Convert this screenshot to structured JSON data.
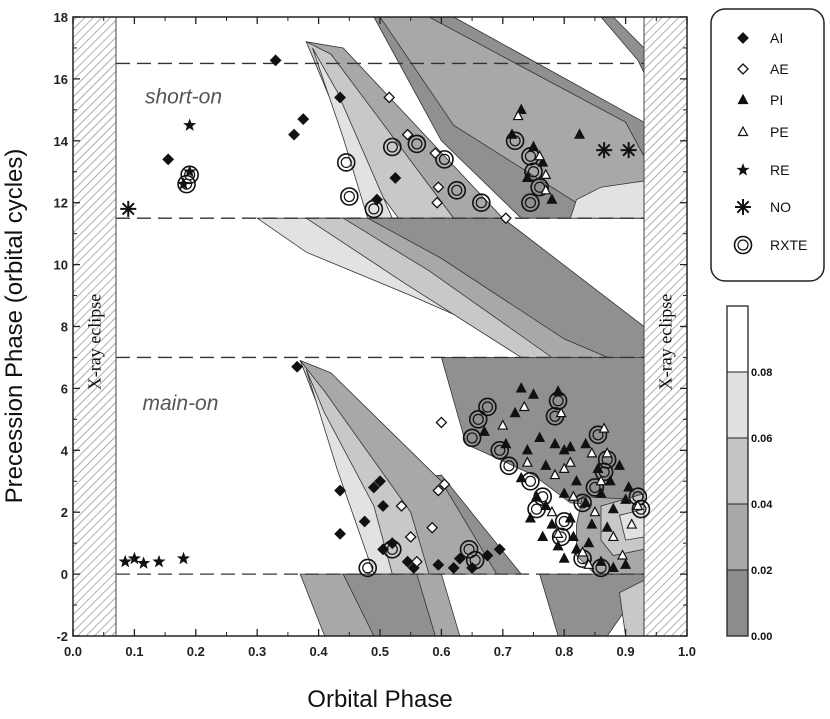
{
  "chart_data": {
    "type": "scatter",
    "xlabel": "Orbital Phase",
    "ylabel": "Precession Phase (orbital cycles)",
    "xlim": [
      0.0,
      1.0
    ],
    "ylim": [
      -2,
      18
    ],
    "xticks": [
      "0.0",
      "0.1",
      "0.2",
      "0.3",
      "0.4",
      "0.5",
      "0.6",
      "0.7",
      "0.8",
      "0.9",
      "1.0"
    ],
    "yticks": [
      "-2",
      "0",
      "2",
      "4",
      "6",
      "8",
      "10",
      "12",
      "14",
      "16",
      "18"
    ],
    "eclipse_label": "X-ray eclipse",
    "eclipse_ranges": [
      [
        0.0,
        0.07
      ],
      [
        0.93,
        1.0
      ]
    ],
    "dashed_lines_y": [
      0,
      7,
      11.5,
      16.5
    ],
    "region_labels": [
      {
        "text": "short-on",
        "x": 0.18,
        "y": 15.2
      },
      {
        "text": "main-on",
        "x": 0.175,
        "y": 5.3
      }
    ],
    "legend_placement": "top-right",
    "series": [
      {
        "name": "AI",
        "marker": "diamond-filled",
        "points": [
          [
            0.33,
            16.6
          ],
          [
            0.435,
            15.4
          ],
          [
            0.375,
            14.7
          ],
          [
            0.36,
            14.2
          ],
          [
            0.155,
            13.4
          ],
          [
            0.525,
            12.8
          ],
          [
            0.495,
            12.1
          ],
          [
            0.365,
            6.7
          ],
          [
            0.435,
            2.7
          ],
          [
            0.49,
            2.8
          ],
          [
            0.435,
            1.3
          ],
          [
            0.475,
            1.7
          ],
          [
            0.505,
            2.2
          ],
          [
            0.5,
            3.0
          ],
          [
            0.52,
            1.0
          ],
          [
            0.545,
            0.4
          ],
          [
            0.555,
            0.2
          ],
          [
            0.595,
            0.3
          ],
          [
            0.505,
            0.8
          ],
          [
            0.65,
            0.2
          ],
          [
            0.675,
            0.6
          ],
          [
            0.63,
            0.5
          ],
          [
            0.695,
            0.8
          ],
          [
            0.62,
            0.2
          ]
        ]
      },
      {
        "name": "AE",
        "marker": "diamond-open",
        "points": [
          [
            0.515,
            15.4
          ],
          [
            0.545,
            14.2
          ],
          [
            0.59,
            13.6
          ],
          [
            0.595,
            12.5
          ],
          [
            0.593,
            12.0
          ],
          [
            0.705,
            11.5
          ],
          [
            0.6,
            4.9
          ],
          [
            0.605,
            2.9
          ],
          [
            0.595,
            2.7
          ],
          [
            0.535,
            2.2
          ],
          [
            0.585,
            1.5
          ],
          [
            0.55,
            1.2
          ],
          [
            0.56,
            0.4
          ]
        ]
      },
      {
        "name": "PI",
        "marker": "triangle-filled",
        "points": [
          [
            0.73,
            15.0
          ],
          [
            0.715,
            14.2
          ],
          [
            0.75,
            13.8
          ],
          [
            0.765,
            13.3
          ],
          [
            0.74,
            12.8
          ],
          [
            0.78,
            12.1
          ],
          [
            0.825,
            14.2
          ],
          [
            0.73,
            6.0
          ],
          [
            0.75,
            5.8
          ],
          [
            0.72,
            5.2
          ],
          [
            0.79,
            5.9
          ],
          [
            0.67,
            4.6
          ],
          [
            0.705,
            4.2
          ],
          [
            0.74,
            4.0
          ],
          [
            0.77,
            3.5
          ],
          [
            0.8,
            4.0
          ],
          [
            0.81,
            4.1
          ],
          [
            0.835,
            4.2
          ],
          [
            0.855,
            3.4
          ],
          [
            0.82,
            3.0
          ],
          [
            0.8,
            2.6
          ],
          [
            0.77,
            2.2
          ],
          [
            0.755,
            2.5
          ],
          [
            0.745,
            1.8
          ],
          [
            0.78,
            1.6
          ],
          [
            0.81,
            1.8
          ],
          [
            0.835,
            2.3
          ],
          [
            0.86,
            2.6
          ],
          [
            0.88,
            2.1
          ],
          [
            0.9,
            2.4
          ],
          [
            0.87,
            1.5
          ],
          [
            0.84,
            1.0
          ],
          [
            0.82,
            0.8
          ],
          [
            0.8,
            0.5
          ],
          [
            0.86,
            0.4
          ],
          [
            0.9,
            0.3
          ],
          [
            0.88,
            0.2
          ],
          [
            0.845,
            1.6
          ],
          [
            0.815,
            1.2
          ],
          [
            0.875,
            3.0
          ],
          [
            0.89,
            3.5
          ],
          [
            0.905,
            2.8
          ],
          [
            0.76,
            4.4
          ],
          [
            0.785,
            4.2
          ],
          [
            0.73,
            3.1
          ],
          [
            0.765,
            1.2
          ],
          [
            0.79,
            0.9
          ]
        ]
      },
      {
        "name": "PE",
        "marker": "triangle-open",
        "points": [
          [
            0.725,
            14.8
          ],
          [
            0.76,
            13.5
          ],
          [
            0.77,
            12.9
          ],
          [
            0.77,
            12.4
          ],
          [
            0.735,
            5.4
          ],
          [
            0.795,
            5.2
          ],
          [
            0.7,
            4.8
          ],
          [
            0.74,
            3.6
          ],
          [
            0.785,
            3.2
          ],
          [
            0.81,
            3.6
          ],
          [
            0.845,
            3.9
          ],
          [
            0.865,
            4.7
          ],
          [
            0.87,
            3.9
          ],
          [
            0.86,
            3.0
          ],
          [
            0.85,
            2.0
          ],
          [
            0.815,
            2.5
          ],
          [
            0.78,
            2.0
          ],
          [
            0.79,
            1.3
          ],
          [
            0.83,
            0.7
          ],
          [
            0.88,
            1.2
          ],
          [
            0.91,
            1.6
          ],
          [
            0.92,
            2.2
          ],
          [
            0.895,
            0.6
          ],
          [
            0.84,
            0.3
          ],
          [
            0.8,
            3.4
          ]
        ]
      },
      {
        "name": "RE",
        "marker": "star",
        "points": [
          [
            0.085,
            0.4
          ],
          [
            0.1,
            0.5
          ],
          [
            0.115,
            0.35
          ],
          [
            0.14,
            0.4
          ],
          [
            0.18,
            0.5
          ],
          [
            0.19,
            14.5
          ],
          [
            0.19,
            13.0
          ],
          [
            0.18,
            12.6
          ]
        ]
      },
      {
        "name": "NO",
        "marker": "asterisk",
        "points": [
          [
            0.09,
            11.8
          ],
          [
            0.865,
            13.7
          ],
          [
            0.905,
            13.7
          ]
        ]
      },
      {
        "name": "RXTE",
        "marker": "circle-open",
        "points": [
          [
            0.445,
            13.3
          ],
          [
            0.45,
            12.2
          ],
          [
            0.49,
            11.8
          ],
          [
            0.52,
            13.8
          ],
          [
            0.56,
            13.9
          ],
          [
            0.605,
            13.4
          ],
          [
            0.625,
            12.4
          ],
          [
            0.665,
            12.0
          ],
          [
            0.185,
            12.6
          ],
          [
            0.19,
            12.9
          ],
          [
            0.72,
            14.0
          ],
          [
            0.745,
            13.5
          ],
          [
            0.75,
            13.0
          ],
          [
            0.76,
            12.5
          ],
          [
            0.745,
            12.0
          ],
          [
            0.66,
            5.0
          ],
          [
            0.675,
            5.4
          ],
          [
            0.65,
            4.4
          ],
          [
            0.695,
            4.0
          ],
          [
            0.71,
            3.5
          ],
          [
            0.745,
            3.0
          ],
          [
            0.765,
            2.5
          ],
          [
            0.755,
            2.1
          ],
          [
            0.79,
            5.6
          ],
          [
            0.785,
            5.1
          ],
          [
            0.855,
            4.5
          ],
          [
            0.87,
            3.7
          ],
          [
            0.865,
            3.3
          ],
          [
            0.85,
            2.8
          ],
          [
            0.83,
            2.3
          ],
          [
            0.8,
            1.7
          ],
          [
            0.795,
            1.2
          ],
          [
            0.83,
            0.5
          ],
          [
            0.86,
            0.2
          ],
          [
            0.92,
            2.5
          ],
          [
            0.925,
            2.1
          ],
          [
            0.52,
            0.8
          ],
          [
            0.48,
            0.2
          ],
          [
            0.645,
            0.8
          ],
          [
            0.655,
            0.45
          ]
        ]
      }
    ],
    "colorbar": {
      "ticks": [
        "0.00",
        "0.02",
        "0.04",
        "0.06",
        "0.08"
      ],
      "range": [
        0.0,
        0.1
      ],
      "colors": [
        "#8c8c8c",
        "#a8a8a8",
        "#c4c4c4",
        "#e0e0e0",
        "#ffffff"
      ]
    },
    "contour_bands": [
      {
        "level": "0.00",
        "color": "#909090"
      },
      {
        "level": "0.02",
        "color": "#a8a8a8"
      },
      {
        "level": "0.04",
        "color": "#c8c8c8"
      },
      {
        "level": "0.06",
        "color": "#e2e2e2"
      }
    ]
  }
}
